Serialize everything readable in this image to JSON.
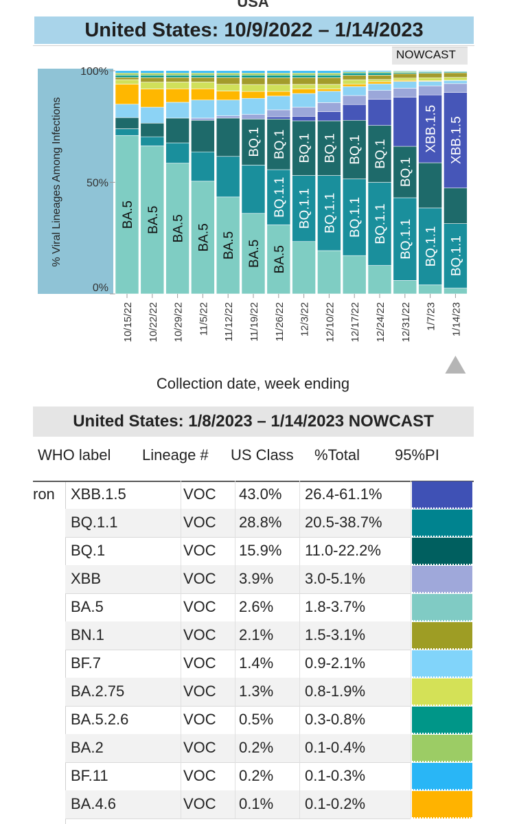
{
  "header": {
    "top_cut": "USA",
    "title": "United States: 10/9/2022 – 1/14/2023",
    "nowcast_tag": "NOWCAST"
  },
  "chart_data": {
    "type": "bar",
    "stacked": true,
    "ylabel": "% Viral Lineages Among Infections",
    "xlabel": "Collection date, week ending",
    "yticks": [
      "0%",
      "50%",
      "100%"
    ],
    "ylim": [
      0,
      100
    ],
    "categories": [
      "10/15/22",
      "10/22/22",
      "10/29/22",
      "11/5/22",
      "11/12/22",
      "11/19/22",
      "11/26/22",
      "12/3/22",
      "12/10/22",
      "12/17/22",
      "12/24/22",
      "12/31/22",
      "1/7/23",
      "1/14/23"
    ],
    "nowcast_marker_category": "1/14/23",
    "series": [
      {
        "name": "BA.5",
        "color": "#7fcdc3",
        "values": [
          71,
          65,
          58,
          50,
          43,
          35,
          30,
          23,
          19,
          17,
          13,
          6,
          4,
          2.6
        ]
      },
      {
        "name": "BQ.1.1",
        "color": "#1a8f9c",
        "values": [
          3,
          4,
          9,
          13,
          18,
          21,
          24,
          29,
          33,
          34,
          38,
          37,
          34,
          29
        ]
      },
      {
        "name": "BQ.1",
        "color": "#1e6a6a",
        "values": [
          5,
          6,
          11,
          14,
          17,
          20,
          22,
          24,
          24,
          26,
          26,
          23,
          20,
          16
        ]
      },
      {
        "name": "XBB.1.5",
        "color": "#4656b8",
        "values": [
          0,
          0,
          0,
          0,
          0,
          0,
          1,
          2,
          4,
          7,
          12,
          22,
          30,
          43
        ]
      },
      {
        "name": "XBB",
        "color": "#9ba7d9",
        "values": [
          0,
          0,
          0,
          1,
          1,
          2,
          3,
          4,
          4,
          4,
          4,
          4,
          4,
          3.9
        ]
      },
      {
        "name": "BF.7",
        "color": "#8cd3f5",
        "values": [
          6,
          7,
          7,
          8,
          7,
          7,
          6,
          6,
          5,
          4,
          3,
          3,
          2,
          1.4
        ]
      },
      {
        "name": "BA.4.6",
        "color": "#ffb700",
        "values": [
          9,
          8,
          6,
          5,
          4,
          3,
          2,
          2,
          1,
          1,
          1,
          0.5,
          0.3,
          0.1
        ]
      },
      {
        "name": "BA.2.75",
        "color": "#d0e05a",
        "values": [
          2,
          3,
          3,
          3,
          3,
          3,
          3,
          2,
          2,
          2,
          1,
          1,
          1.3,
          1.3
        ]
      },
      {
        "name": "BN.1",
        "color": "#a39b2b",
        "values": [
          1,
          2,
          2,
          2,
          3,
          3,
          3,
          3,
          3,
          2,
          2,
          2,
          2,
          2.1
        ]
      },
      {
        "name": "BA.5.2.6",
        "color": "#009688",
        "values": [
          1,
          1,
          1,
          1,
          1,
          1,
          1,
          1,
          1,
          1,
          1,
          0.5,
          0.5,
          0.5
        ]
      },
      {
        "name": "BA.2",
        "color": "#9ccc65",
        "values": [
          1,
          1,
          1,
          1,
          1,
          1,
          1,
          1,
          1,
          0.5,
          0.5,
          0.5,
          0.3,
          0.2
        ]
      },
      {
        "name": "BF.11",
        "color": "#29b6f6",
        "values": [
          1,
          1,
          1,
          1,
          1,
          1,
          1,
          1,
          1,
          0.5,
          0.5,
          0.3,
          0.3,
          0.2
        ]
      }
    ],
    "bar_labels": [
      [
        "BA.5"
      ],
      [
        "BA.5"
      ],
      [
        "BA.5"
      ],
      [
        "BA.5"
      ],
      [
        "BA.5"
      ],
      [
        "BA.5",
        "BQ.1"
      ],
      [
        "BA.5",
        "BQ.1.1",
        "BQ.1"
      ],
      [
        "BQ.1.1",
        "BQ.1"
      ],
      [
        "BQ.1.1",
        "BQ.1"
      ],
      [
        "BQ.1.1",
        "BQ.1"
      ],
      [
        "BQ.1.1",
        "BQ.1"
      ],
      [
        "BQ.1.1",
        "BQ.1"
      ],
      [
        "BQ.1.1",
        "XBB.1.5"
      ],
      [
        "BQ.1.1",
        "XBB.1.5"
      ]
    ]
  },
  "table": {
    "title": "United States: 1/8/2023 – 1/14/2023 NOWCAST",
    "headers": [
      "WHO label",
      "Lineage #",
      "US Class",
      "%Total",
      "95%PI"
    ],
    "who_label_fragment": "ron",
    "rows": [
      {
        "lineage": "XBB.1.5",
        "cls": "VOC",
        "total": "43.0%",
        "pi": "26.4-61.1%",
        "color": "#3f51b5"
      },
      {
        "lineage": "BQ.1.1",
        "cls": "VOC",
        "total": "28.8%",
        "pi": "20.5-38.7%",
        "color": "#00838f"
      },
      {
        "lineage": "BQ.1",
        "cls": "VOC",
        "total": "15.9%",
        "pi": "11.0-22.2%",
        "color": "#005f5f"
      },
      {
        "lineage": "XBB",
        "cls": "VOC",
        "total": "3.9%",
        "pi": "3.0-5.1%",
        "color": "#9fa8da"
      },
      {
        "lineage": "BA.5",
        "cls": "VOC",
        "total": "2.6%",
        "pi": "1.8-3.7%",
        "color": "#80cbc4"
      },
      {
        "lineage": "BN.1",
        "cls": "VOC",
        "total": "2.1%",
        "pi": "1.5-3.1%",
        "color": "#9e9d24"
      },
      {
        "lineage": "BF.7",
        "cls": "VOC",
        "total": "1.4%",
        "pi": "0.9-2.1%",
        "color": "#81d4fa"
      },
      {
        "lineage": "BA.2.75",
        "cls": "VOC",
        "total": "1.3%",
        "pi": "0.8-1.9%",
        "color": "#d4e157"
      },
      {
        "lineage": "BA.5.2.6",
        "cls": "VOC",
        "total": "0.5%",
        "pi": "0.3-0.8%",
        "color": "#009688"
      },
      {
        "lineage": "BA.2",
        "cls": "VOC",
        "total": "0.2%",
        "pi": "0.1-0.4%",
        "color": "#9ccc65"
      },
      {
        "lineage": "BF.11",
        "cls": "VOC",
        "total": "0.2%",
        "pi": "0.1-0.3%",
        "color": "#29b6f6"
      },
      {
        "lineage": "BA.4.6",
        "cls": "VOC",
        "total": "0.1%",
        "pi": "0.1-0.2%",
        "color": "#ffb300"
      }
    ]
  }
}
